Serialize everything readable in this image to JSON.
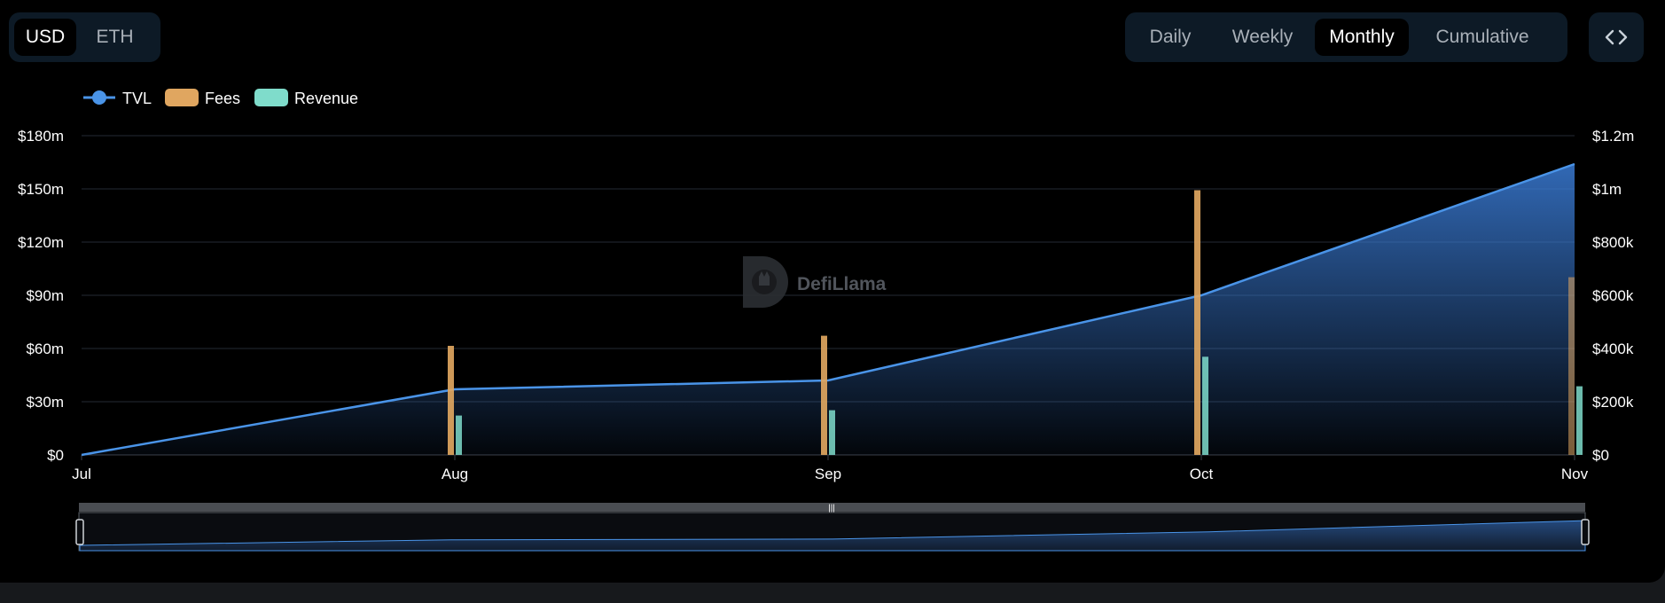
{
  "toggles": {
    "currency": [
      {
        "label": "USD",
        "active": true
      },
      {
        "label": "ETH",
        "active": false
      }
    ],
    "period": [
      {
        "label": "Daily",
        "active": false
      },
      {
        "label": "Weekly",
        "active": false
      },
      {
        "label": "Monthly",
        "active": true
      },
      {
        "label": "Cumulative",
        "active": false
      }
    ],
    "embed_icon": "code-icon"
  },
  "watermark": {
    "text": "DefiLlama",
    "icon": "llama-logo-icon"
  },
  "colors": {
    "tvl": "#4a94e8",
    "fees": "#e0a660",
    "revenue": "#7fdccb",
    "grid": "#232a33"
  },
  "chart_data": {
    "type": "bar",
    "categories": [
      "Jul",
      "Aug",
      "Sep",
      "Oct",
      "Nov"
    ],
    "legend": [
      {
        "name": "TVL",
        "color": "#4a94e8",
        "shape": "line"
      },
      {
        "name": "Fees",
        "color": "#e0a660",
        "shape": "box"
      },
      {
        "name": "Revenue",
        "color": "#7fdccb",
        "shape": "box"
      }
    ],
    "legend_position": "top-left",
    "y_left": {
      "ticks": [
        "$0",
        "$30m",
        "$60m",
        "$90m",
        "$120m",
        "$150m",
        "$180m"
      ],
      "range": [
        0,
        180000000
      ]
    },
    "y_right": {
      "ticks": [
        "$0",
        "$200k",
        "$400k",
        "$600k",
        "$800k",
        "$1m",
        "$1.2m"
      ],
      "range": [
        0,
        1200000
      ]
    },
    "series": [
      {
        "name": "TVL",
        "type": "area-line",
        "axis": "left",
        "values": [
          0,
          37000000,
          42000000,
          90000000,
          164000000
        ]
      },
      {
        "name": "Fees",
        "type": "bar",
        "axis": "right",
        "values": [
          null,
          410000,
          448000,
          995000,
          668000
        ]
      },
      {
        "name": "Revenue",
        "type": "bar",
        "axis": "right",
        "values": [
          null,
          148000,
          168000,
          369000,
          258000
        ]
      }
    ],
    "grid": true
  }
}
